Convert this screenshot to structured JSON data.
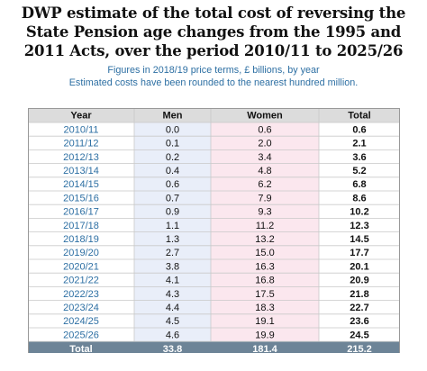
{
  "title_lines": [
    "DWP estimate of the total cost of reversing the",
    "State Pension age changes from the 1995 and",
    "2011 Acts, over the period 2010/11 to 2025/26"
  ],
  "subtitle_lines": [
    "Figures in 2018/19 price terms, £ billions, by year",
    "Estimated costs have been rounded to the nearest hundred million."
  ],
  "colors": {
    "header_bg": "#dcdcdc",
    "year_col": "#2d6fa3",
    "men_bg": "#e9eef9",
    "women_bg": "#fbe7ee",
    "total_row_bg": "#6d8497",
    "grid": "#c9c9c9"
  },
  "chart_data": {
    "type": "table",
    "columns": [
      "Year",
      "Men",
      "Women",
      "Total"
    ],
    "rows": [
      [
        "2010/11",
        "0.0",
        "0.6",
        "0.6"
      ],
      [
        "2011/12",
        "0.1",
        "2.0",
        "2.1"
      ],
      [
        "2012/13",
        "0.2",
        "3.4",
        "3.6"
      ],
      [
        "2013/14",
        "0.4",
        "4.8",
        "5.2"
      ],
      [
        "2014/15",
        "0.6",
        "6.2",
        "6.8"
      ],
      [
        "2015/16",
        "0.7",
        "7.9",
        "8.6"
      ],
      [
        "2016/17",
        "0.9",
        "9.3",
        "10.2"
      ],
      [
        "2017/18",
        "1.1",
        "11.2",
        "12.3"
      ],
      [
        "2018/19",
        "1.3",
        "13.2",
        "14.5"
      ],
      [
        "2019/20",
        "2.7",
        "15.0",
        "17.7"
      ],
      [
        "2020/21",
        "3.8",
        "16.3",
        "20.1"
      ],
      [
        "2021/22",
        "4.1",
        "16.8",
        "20.9"
      ],
      [
        "2022/23",
        "4.3",
        "17.5",
        "21.8"
      ],
      [
        "2023/24",
        "4.4",
        "18.3",
        "22.7"
      ],
      [
        "2024/25",
        "4.5",
        "19.1",
        "23.6"
      ],
      [
        "2025/26",
        "4.6",
        "19.9",
        "24.5"
      ]
    ],
    "total_row": [
      "Total",
      "33.8",
      "181.4",
      "215.2"
    ]
  }
}
